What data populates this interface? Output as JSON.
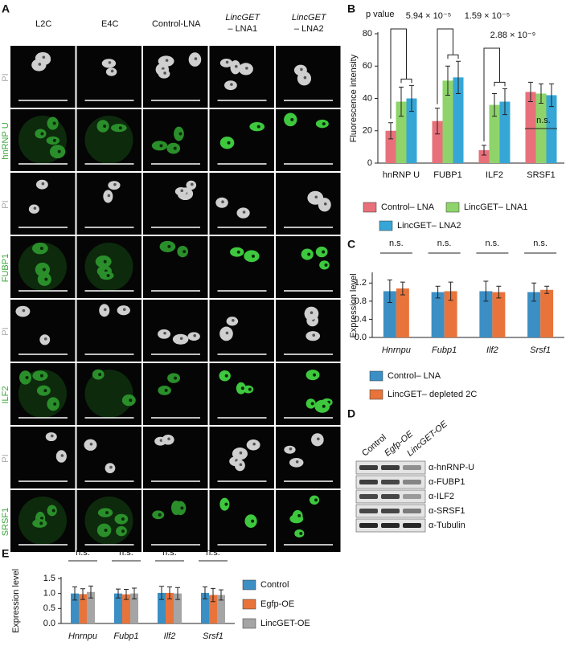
{
  "figure": {
    "panel_labels": [
      "A",
      "B",
      "C",
      "D",
      "E"
    ]
  },
  "panel_a": {
    "columns": [
      [
        "L2C"
      ],
      [
        "E4C"
      ],
      [
        "Control-LNA"
      ],
      [
        "LincGET",
        "– LNA1"
      ],
      [
        "LincGET",
        "– LNA2"
      ]
    ],
    "rows": [
      "PI",
      "hnRNP U",
      "PI",
      "FUBP1",
      "PI",
      "ILF2",
      "PI",
      "SRSF1"
    ]
  },
  "panel_d": {
    "lanes": [
      "Control",
      "Egfp-OE",
      "LincGET-OE"
    ],
    "bands": [
      "α-hnRNP-U",
      "α-FUBP1",
      "α-ILF2",
      "α-SRSF1",
      "α-Tubulin"
    ]
  },
  "chart_data": [
    {
      "type": "bar",
      "ylabel": "Fluorescence intensity",
      "categories": [
        "hnRNP U",
        "FUBP1",
        "ILF2",
        "SRSF1"
      ],
      "ylim": [
        0,
        80
      ],
      "yticks": [
        0,
        20,
        40,
        60,
        80
      ],
      "series": [
        {
          "name": "Control– LNA",
          "color": "#e8707a",
          "values": [
            20,
            26,
            8,
            44
          ],
          "errors": [
            5,
            8,
            3,
            6
          ]
        },
        {
          "name": "LincGET– LNA1",
          "color": "#8ed46a",
          "values": [
            38,
            51,
            36,
            43
          ],
          "errors": [
            9,
            9,
            7,
            6
          ]
        },
        {
          "name": "LincGET– LNA2",
          "color": "#36a6d6",
          "values": [
            40,
            53,
            38,
            42
          ],
          "errors": [
            8,
            10,
            8,
            7
          ]
        }
      ],
      "annotations": [
        "p value",
        "5.94 × 10⁻⁵",
        "1.59 × 10⁻⁵",
        "2.88 × 10⁻⁹",
        "n.s."
      ]
    },
    {
      "type": "bar",
      "ylabel": "Expression level",
      "categories": [
        "Hnrnpu",
        "Fubp1",
        "Ilf2",
        "Srsf1"
      ],
      "ylim": [
        0,
        1.4
      ],
      "yticks": [
        {
          "value": 0,
          "label": "0.0"
        },
        0.4,
        0.8,
        1.2
      ],
      "series": [
        {
          "name": "Control– LNA",
          "color": "#3b8fc4",
          "values": [
            1.02,
            1.0,
            1.02,
            1.0
          ],
          "errors": [
            0.25,
            0.13,
            0.22,
            0.2
          ]
        },
        {
          "name": "LincGET– depleted 2C",
          "color": "#e8743b",
          "values": [
            1.08,
            1.02,
            1.0,
            1.05
          ],
          "errors": [
            0.14,
            0.2,
            0.13,
            0.08
          ]
        }
      ],
      "annotations": [
        "n.s.",
        "n.s.",
        "n.s.",
        "n.s."
      ]
    },
    {
      "type": "bar",
      "ylabel": "Expression level",
      "categories": [
        "Hnrnpu",
        "Fubp1",
        "Ilf2",
        "Srsf1"
      ],
      "ylim": [
        0,
        1.5
      ],
      "yticks": [
        {
          "value": 0,
          "label": "0.0"
        },
        0.5,
        {
          "value": 1,
          "label": "1.0"
        },
        1.5
      ],
      "series": [
        {
          "name": "Control",
          "color": "#3b8fc4",
          "values": [
            1.0,
            1.0,
            1.02,
            1.02
          ],
          "errors": [
            0.22,
            0.15,
            0.22,
            0.2
          ]
        },
        {
          "name": "Egfp-OE",
          "color": "#e8743b",
          "values": [
            0.98,
            0.97,
            1.02,
            0.95
          ],
          "errors": [
            0.18,
            0.17,
            0.2,
            0.22
          ]
        },
        {
          "name": "LincGET-OE",
          "color": "#a5a5a5",
          "values": [
            1.05,
            1.0,
            1.0,
            0.95
          ],
          "errors": [
            0.2,
            0.18,
            0.2,
            0.17
          ]
        }
      ],
      "annotations": [
        "n.s.",
        "n.s.",
        "n.s.",
        "n.s."
      ]
    }
  ]
}
